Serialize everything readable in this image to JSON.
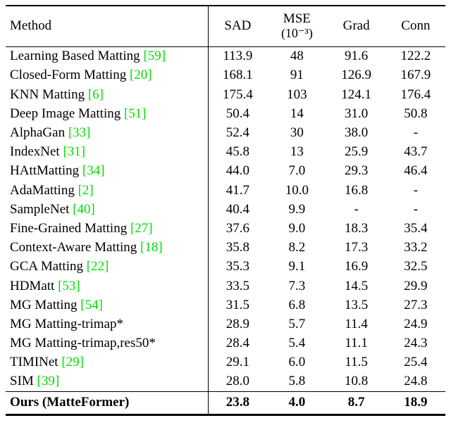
{
  "colors": {
    "citation_green": "#00dd00",
    "text": "#000000",
    "background": "#ffffff"
  },
  "table": {
    "header": {
      "method": "Method",
      "sad": "SAD",
      "mse": "MSE",
      "mse_unit": "(10⁻³)",
      "grad": "Grad",
      "conn": "Conn"
    },
    "rows": [
      {
        "method": "Learning Based Matting",
        "cite": "[59]",
        "sad": "113.9",
        "mse": "48",
        "grad": "91.6",
        "conn": "122.2"
      },
      {
        "method": "Closed-Form Matting",
        "cite": "[20]",
        "sad": "168.1",
        "mse": "91",
        "grad": "126.9",
        "conn": "167.9"
      },
      {
        "method": "KNN Matting",
        "cite": "[6]",
        "sad": "175.4",
        "mse": "103",
        "grad": "124.1",
        "conn": "176.4"
      },
      {
        "method": "Deep Image Matting",
        "cite": "[51]",
        "sad": "50.4",
        "mse": "14",
        "grad": "31.0",
        "conn": "50.8"
      },
      {
        "method": "AlphaGan",
        "cite": "[33]",
        "sad": "52.4",
        "mse": "30",
        "grad": "38.0",
        "conn": "-"
      },
      {
        "method": "IndexNet",
        "cite": "[31]",
        "sad": "45.8",
        "mse": "13",
        "grad": "25.9",
        "conn": "43.7"
      },
      {
        "method": "HAttMatting",
        "cite": "[34]",
        "sad": "44.0",
        "mse": "7.0",
        "grad": "29.3",
        "conn": "46.4"
      },
      {
        "method": "AdaMatting",
        "cite": "[2]",
        "sad": "41.7",
        "mse": "10.0",
        "grad": "16.8",
        "conn": "-"
      },
      {
        "method": "SampleNet",
        "cite": "[40]",
        "sad": "40.4",
        "mse": "9.9",
        "grad": "-",
        "conn": "-"
      },
      {
        "method": "Fine-Grained Matting",
        "cite": "[27]",
        "sad": "37.6",
        "mse": "9.0",
        "grad": "18.3",
        "conn": "35.4"
      },
      {
        "method": "Context-Aware Matting",
        "cite": "[18]",
        "sad": "35.8",
        "mse": "8.2",
        "grad": "17.3",
        "conn": "33.2"
      },
      {
        "method": "GCA Matting",
        "cite": "[22]",
        "sad": "35.3",
        "mse": "9.1",
        "grad": "16.9",
        "conn": "32.5"
      },
      {
        "method": "HDMatt",
        "cite": "[53]",
        "sad": "33.5",
        "mse": "7.3",
        "grad": "14.5",
        "conn": "29.9"
      },
      {
        "method": "MG Matting",
        "cite": "[54]",
        "sad": "31.5",
        "mse": "6.8",
        "grad": "13.5",
        "conn": "27.3"
      },
      {
        "method": "MG Matting-trimap*",
        "cite": "",
        "sad": "28.9",
        "mse": "5.7",
        "grad": "11.4",
        "conn": "24.9"
      },
      {
        "method": "MG Matting-trimap,res50*",
        "cite": "",
        "sad": "28.4",
        "mse": "5.4",
        "grad": "11.1",
        "conn": "24.3"
      },
      {
        "method": "TIMINet",
        "cite": "[29]",
        "sad": "29.1",
        "mse": "6.0",
        "grad": "11.5",
        "conn": "25.4"
      },
      {
        "method": "SIM",
        "cite": "[39]",
        "sad": "28.0",
        "mse": "5.8",
        "grad": "10.8",
        "conn": "24.8"
      },
      {
        "method": "Ours (MatteFormer)",
        "cite": "",
        "sad": "23.8",
        "mse": "4.0",
        "grad": "8.7",
        "conn": "18.9",
        "bold": true
      }
    ]
  }
}
